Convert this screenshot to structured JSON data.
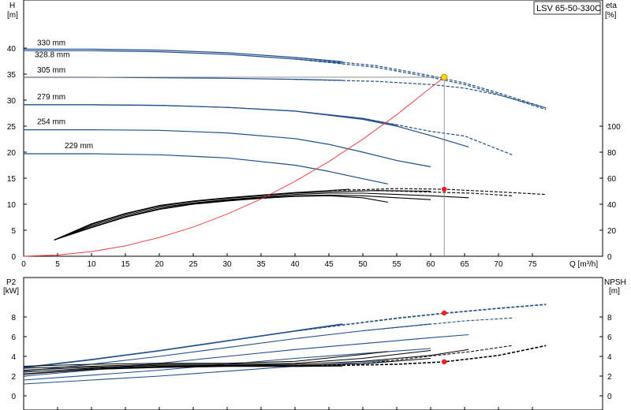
{
  "model": "LSV 65-50-330C",
  "chart_data": [
    {
      "type": "line",
      "panel": "performance",
      "xlabel": "Q [m³/h]",
      "x_unit": "",
      "ylabel": "H",
      "y_unit": "[m]",
      "ylabel_right": "eta",
      "y_unit_right": "[%]",
      "xlim": [
        0,
        80
      ],
      "ylim": [
        0,
        45
      ],
      "ylim_right": [
        0,
        135
      ],
      "x_ticks": [
        0,
        5,
        10,
        15,
        20,
        25,
        30,
        35,
        40,
        45,
        50,
        55,
        60,
        65,
        70,
        75
      ],
      "y_ticks": [
        0,
        5,
        10,
        15,
        20,
        25,
        30,
        35,
        40
      ],
      "y_ticks_right": [
        0,
        20,
        40,
        60,
        80,
        100
      ],
      "grid": false,
      "head_curves": [
        {
          "label": "330 mm",
          "x": [
            0,
            10,
            20,
            30,
            40,
            47,
            52,
            60,
            65,
            70,
            77
          ],
          "y": [
            39.8,
            39.8,
            39.6,
            39.1,
            38.2,
            37.4,
            36.6,
            34.7,
            33.3,
            31.4,
            28.5
          ],
          "solid_until": 47
        },
        {
          "label": "328.8 mm",
          "x": [
            0,
            10,
            20,
            30,
            40,
            47,
            52,
            60,
            65,
            70,
            77
          ],
          "y": [
            39.5,
            39.5,
            39.3,
            38.8,
            37.9,
            37.1,
            36.3,
            34.4,
            33.0,
            31.1,
            28.2
          ],
          "solid_until": 47
        },
        {
          "label": "305 mm",
          "x": [
            0,
            10,
            20,
            30,
            40,
            47,
            52,
            60,
            65,
            70,
            77
          ],
          "y": [
            34.4,
            34.4,
            34.3,
            34.2,
            34.0,
            33.8,
            33.6,
            33.0,
            32.3,
            31.0,
            28.5
          ],
          "solid_until": 47
        },
        {
          "label": "",
          "x": [
            0,
            10,
            20,
            30,
            40,
            50,
            55,
            60,
            65,
            72
          ],
          "y": [
            29.1,
            29.1,
            29.0,
            28.6,
            27.9,
            26.5,
            25.2,
            24.0,
            23.1,
            19.5
          ],
          "solid_until": 55
        },
        {
          "label": "279 mm",
          "x": [
            0,
            10,
            20,
            30,
            40,
            50,
            55,
            60,
            65.6
          ],
          "y": [
            29.1,
            29.1,
            29.0,
            28.6,
            27.9,
            26.3,
            25.0,
            23.2,
            21.0
          ],
          "solid_until": 66
        },
        {
          "label": "254 mm",
          "x": [
            0,
            10,
            20,
            30,
            40,
            45,
            50,
            55,
            60
          ],
          "y": [
            24.3,
            24.3,
            24.2,
            23.7,
            22.6,
            21.5,
            20.0,
            18.4,
            17.2
          ],
          "solid_until": 60
        },
        {
          "label": "229 mm",
          "x": [
            0,
            10,
            20,
            30,
            40,
            45,
            50,
            53.7
          ],
          "y": [
            19.7,
            19.7,
            19.5,
            18.9,
            17.5,
            16.3,
            14.9,
            13.9
          ],
          "solid_until": 54
        }
      ],
      "efficiency_curves": [
        {
          "x": [
            4.5,
            10,
            15,
            20,
            25,
            30,
            35,
            40,
            45,
            48,
            55,
            62,
            68,
            77
          ],
          "y": [
            12.5,
            25,
            33,
            39,
            42.5,
            45,
            47,
            49,
            50.5,
            51.5,
            52,
            51.5,
            50,
            47.5
          ],
          "solid_until": 48
        },
        {
          "x": [
            4.5,
            10,
            15,
            20,
            25,
            30,
            35,
            40,
            45,
            52,
            60,
            66,
            72
          ],
          "y": [
            12.5,
            24.5,
            32.5,
            38.5,
            42,
            44.5,
            46.5,
            48.5,
            49.5,
            50.5,
            50,
            48.5,
            46.5
          ],
          "solid_until": 60
        },
        {
          "x": [
            4.5,
            10,
            15,
            20,
            25,
            30,
            35,
            40,
            45,
            50,
            55,
            60,
            65.6
          ],
          "y": [
            12.5,
            23.5,
            31.5,
            37.5,
            41,
            43.5,
            45.5,
            47.5,
            48.5,
            48.5,
            47.5,
            46.5,
            45
          ],
          "solid_until": 66
        },
        {
          "x": [
            4.5,
            10,
            15,
            20,
            25,
            30,
            35,
            40,
            45,
            50,
            55,
            60
          ],
          "y": [
            12.5,
            22.5,
            30.5,
            36.5,
            40.5,
            43,
            45,
            46.5,
            47,
            46.5,
            45,
            43.5
          ],
          "solid_until": 60
        },
        {
          "x": [
            4.5,
            10,
            15,
            20,
            25,
            30,
            35,
            40,
            45,
            50,
            53.7
          ],
          "y": [
            12.5,
            22,
            30,
            36,
            40,
            42.5,
            44.5,
            46,
            46.5,
            45,
            41.5
          ],
          "solid_until": 54
        }
      ],
      "system_curve": {
        "x": [
          0,
          5,
          10,
          15,
          20,
          25,
          30,
          35,
          40,
          45,
          50,
          55,
          60,
          62
        ],
        "y": [
          0,
          0.22,
          0.9,
          2.0,
          3.6,
          5.6,
          8.1,
          11.0,
          14.4,
          18.2,
          22.5,
          27.2,
          32.4,
          34.4
        ]
      },
      "duty_point": {
        "q": 62,
        "h": 34.4,
        "eta": 51.5
      }
    },
    {
      "type": "line",
      "panel": "power_npsh",
      "ylabel": "P2",
      "y_unit": "[kW]",
      "ylabel_right": "NPSH",
      "y_unit_right": "[m]",
      "xlim": [
        0,
        80
      ],
      "ylim": [
        0,
        10
      ],
      "ylim_right": [
        0,
        10
      ],
      "y_ticks": [
        0,
        2,
        4,
        6,
        8
      ],
      "y_ticks_right": [
        0,
        2,
        4,
        6,
        8
      ],
      "grid": false,
      "power_curves": [
        {
          "x": [
            0,
            10,
            20,
            30,
            40,
            47,
            55,
            62,
            70,
            77
          ],
          "y": [
            2.9,
            3.7,
            4.6,
            5.6,
            6.6,
            7.3,
            7.9,
            8.4,
            8.9,
            9.3
          ],
          "solid_until": 47
        },
        {
          "x": [
            0,
            10,
            20,
            30,
            40,
            47,
            55,
            62,
            70,
            77
          ],
          "y": [
            2.85,
            3.65,
            4.55,
            5.55,
            6.55,
            7.25,
            7.85,
            8.35,
            8.85,
            9.25
          ],
          "solid_until": 47
        },
        {
          "x": [
            0,
            10,
            20,
            30,
            40,
            50,
            60,
            65,
            72
          ],
          "y": [
            2.5,
            3.2,
            4.0,
            4.9,
            5.8,
            6.6,
            7.3,
            7.6,
            7.9
          ],
          "solid_until": 60
        },
        {
          "x": [
            0,
            10,
            20,
            30,
            40,
            50,
            60,
            65.6
          ],
          "y": [
            2.0,
            2.6,
            3.3,
            4.0,
            4.7,
            5.3,
            5.9,
            6.2
          ],
          "solid_until": 66
        },
        {
          "x": [
            0,
            10,
            20,
            30,
            40,
            50,
            60
          ],
          "y": [
            1.6,
            2.1,
            2.6,
            3.2,
            3.8,
            4.3,
            4.8
          ],
          "solid_until": 60
        },
        {
          "x": [
            0,
            10,
            20,
            30,
            40,
            50,
            53.7
          ],
          "y": [
            1.2,
            1.6,
            2.0,
            2.5,
            3.0,
            3.4,
            3.6
          ],
          "solid_until": 54
        }
      ],
      "npsh_curves": [
        {
          "x": [
            0,
            10,
            20,
            30,
            40,
            47,
            55,
            62,
            70,
            77
          ],
          "y": [
            2.2,
            2.7,
            2.9,
            3.0,
            3.0,
            3.05,
            3.2,
            3.45,
            4.1,
            5.1
          ],
          "solid_until": 47
        },
        {
          "x": [
            0,
            10,
            20,
            30,
            40,
            50,
            60,
            66,
            72
          ],
          "y": [
            2.4,
            2.8,
            3.0,
            3.05,
            3.1,
            3.25,
            3.8,
            4.5,
            5.1
          ],
          "solid_until": 60
        },
        {
          "x": [
            0,
            10,
            20,
            30,
            40,
            50,
            60,
            65.6
          ],
          "y": [
            2.6,
            2.9,
            3.1,
            3.1,
            3.2,
            3.5,
            4.1,
            4.7
          ],
          "solid_until": 66
        },
        {
          "x": [
            0,
            10,
            20,
            30,
            40,
            50,
            60
          ],
          "y": [
            2.8,
            3.0,
            3.2,
            3.2,
            3.3,
            3.8,
            4.6
          ],
          "solid_until": 60
        },
        {
          "x": [
            0,
            10,
            20,
            30,
            40,
            50,
            53.7
          ],
          "y": [
            3.0,
            3.2,
            3.3,
            3.3,
            3.5,
            4.2,
            4.5
          ],
          "solid_until": 54
        }
      ],
      "duty_point": {
        "q": 62,
        "p2": 8.4,
        "npsh": 3.45
      }
    }
  ],
  "colors": {
    "head": "#1f4e8c",
    "efficiency": "#000000",
    "power": "#1f4e8c",
    "npsh": "#000000",
    "system_curve": "#ff2a2a",
    "duty_point_fill": "#ffd21a",
    "duty_marker": "#ff1a1a",
    "frame": "#000000",
    "guide": "#808080"
  }
}
